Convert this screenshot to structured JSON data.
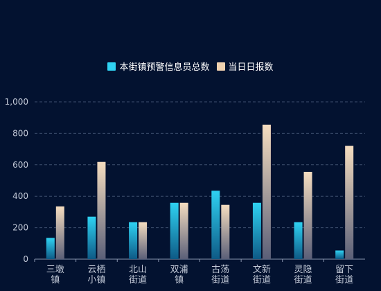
{
  "chart_data": {
    "type": "bar",
    "title": "",
    "xlabel": "",
    "ylabel": "",
    "ylim": [
      0,
      1000
    ],
    "yticks": [
      0,
      200,
      400,
      600,
      800,
      1000
    ],
    "ytick_labels": [
      "0",
      "200",
      "400",
      "600",
      "800",
      "1,000"
    ],
    "categories": [
      [
        "三墩",
        "镇"
      ],
      [
        "云栖",
        "小镇"
      ],
      [
        "北山",
        "街道"
      ],
      [
        "双浦",
        "镇"
      ],
      [
        "古荡",
        "街道"
      ],
      [
        "文新",
        "街道"
      ],
      [
        "灵隐",
        "街道"
      ],
      [
        "留下",
        "街道"
      ]
    ],
    "series": [
      {
        "name": "本街镇预警信息员总数",
        "values": [
          135,
          270,
          235,
          358,
          435,
          358,
          235,
          55
        ],
        "color_top": "#2fd2f2",
        "color_bottom": "#0e5a86"
      },
      {
        "name": "当日日报数",
        "values": [
          335,
          618,
          235,
          358,
          345,
          855,
          555,
          720
        ],
        "color_top": "#f5ddc0",
        "color_bottom": "#5a5f78"
      }
    ],
    "grid": true,
    "legend_position": "top-center",
    "colors": {
      "background": "#031230",
      "grid": "#3e4f6e",
      "axis": "#8a97b0",
      "tick_text": "#c3cad8",
      "legend_text": "#ffffff"
    }
  }
}
